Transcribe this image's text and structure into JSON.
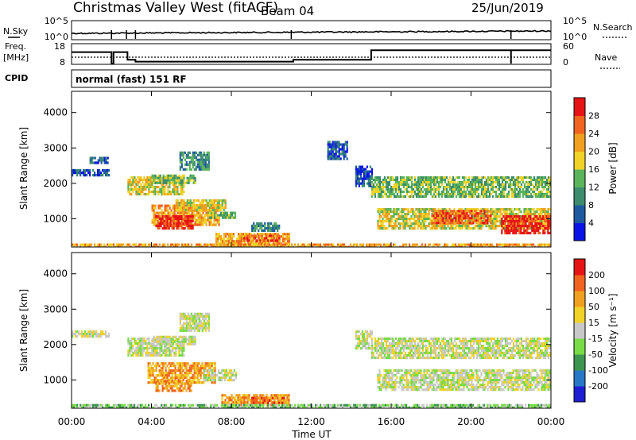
{
  "header": {
    "title": "Christmas Valley West (fitACF)",
    "beam": "Beam 04",
    "date": "25/Jun/2019"
  },
  "chart_data": [
    {
      "type": "line",
      "panel": "sky-search",
      "left_label": "N.Sky",
      "left_ticks": [
        "10^5",
        "10^0"
      ],
      "right_label": "N.Search",
      "right_ticks": [
        "10^5",
        "10^0"
      ]
    },
    {
      "type": "line",
      "panel": "freq-nave",
      "left_label_1": "Freq.",
      "left_label_2": "[MHz]",
      "left_ticks": [
        "18",
        "8"
      ],
      "right_label": "Nave",
      "right_ticks": [
        "60",
        "0"
      ],
      "ylim_freq": [
        8,
        18
      ],
      "ylim_nave": [
        0,
        60
      ],
      "freq_steps": [
        {
          "t": 0.0,
          "v": 14
        },
        {
          "t": 2.0,
          "v": 8
        },
        {
          "t": 2.1,
          "v": 14
        },
        {
          "t": 2.8,
          "v": 10
        },
        {
          "t": 3.2,
          "v": 9
        },
        {
          "t": 11.0,
          "v": 9
        },
        {
          "t": 11.1,
          "v": 10
        },
        {
          "t": 15.0,
          "v": 15
        },
        {
          "t": 24.0,
          "v": 15
        }
      ],
      "nave_level": 20
    },
    {
      "type": "table",
      "panel": "cpid",
      "label": "CPID",
      "program": "normal (fast) 151 RF"
    },
    {
      "type": "heatmap",
      "panel": "power",
      "ylabel": "Slant Range [km]",
      "yticks": [
        "4000",
        "3000",
        "2000",
        "1000"
      ],
      "ylim": [
        200,
        4600
      ],
      "xlim": [
        0,
        24
      ],
      "colorbar": {
        "label": "Power [dB]",
        "ticks": [
          "28",
          "24",
          "20",
          "16",
          "12",
          "8",
          "4"
        ],
        "colors": [
          "#0a14e6",
          "#1e5aa0",
          "#3c8c6e",
          "#5ab45a",
          "#f0d228",
          "#f0a01e",
          "#f0641e",
          "#e61414"
        ]
      },
      "patches": [
        {
          "t": [
            0.0,
            1.9
          ],
          "r": [
            2200,
            2400
          ],
          "level": 1
        },
        {
          "t": [
            0.9,
            1.8
          ],
          "r": [
            2550,
            2750
          ],
          "level": 1
        },
        {
          "t": [
            2.8,
            5.6
          ],
          "r": [
            1700,
            2200
          ],
          "level": 4
        },
        {
          "t": [
            4.0,
            6.2
          ],
          "r": [
            2000,
            2250
          ],
          "level": 3
        },
        {
          "t": [
            5.4,
            6.9
          ],
          "r": [
            2400,
            2900
          ],
          "level": 2
        },
        {
          "t": [
            4.0,
            7.4
          ],
          "r": [
            850,
            1400
          ],
          "level": 5
        },
        {
          "t": [
            4.2,
            6.1
          ],
          "r": [
            700,
            1100
          ],
          "level": 7
        },
        {
          "t": [
            5.2,
            7.7
          ],
          "r": [
            1250,
            1550
          ],
          "level": 4
        },
        {
          "t": [
            6.8,
            8.2
          ],
          "r": [
            1000,
            1200
          ],
          "level": 3
        },
        {
          "t": [
            7.2,
            10.9
          ],
          "r": [
            250,
            600
          ],
          "level": 5
        },
        {
          "t": [
            8.6,
            10.4
          ],
          "r": [
            350,
            550
          ],
          "level": 6
        },
        {
          "t": [
            9.0,
            10.4
          ],
          "r": [
            650,
            900
          ],
          "level": 2
        },
        {
          "t": [
            12.8,
            13.8
          ],
          "r": [
            2700,
            3200
          ],
          "level": 1
        },
        {
          "t": [
            14.2,
            15.0
          ],
          "r": [
            1900,
            2500
          ],
          "level": 1
        },
        {
          "t": [
            15.0,
            24.0
          ],
          "r": [
            1600,
            2200
          ],
          "level": 3
        },
        {
          "t": [
            15.3,
            24.0
          ],
          "r": [
            700,
            1300
          ],
          "level": 4
        },
        {
          "t": [
            18.0,
            21.0
          ],
          "r": [
            900,
            1250
          ],
          "level": 6
        },
        {
          "t": [
            21.5,
            24.0
          ],
          "r": [
            600,
            1100
          ],
          "level": 7
        },
        {
          "t": [
            0.0,
            24.0
          ],
          "r": [
            200,
            300
          ],
          "level": 5
        }
      ]
    },
    {
      "type": "heatmap",
      "panel": "velocity",
      "ylabel": "Slant Range [km]",
      "yticks": [
        "4000",
        "3000",
        "2000",
        "1000"
      ],
      "ylim": [
        200,
        4600
      ],
      "xlim": [
        0,
        24
      ],
      "xlabel": "Time UT",
      "xticks": [
        "00:00",
        "04:00",
        "08:00",
        "12:00",
        "16:00",
        "20:00",
        "00:00"
      ],
      "colorbar": {
        "label": "Velocity [m s⁻¹]",
        "ticks": [
          "200",
          "100",
          "50",
          "15",
          "-15",
          "-50",
          "-100",
          "-200"
        ],
        "colors": [
          "#1e1ed2",
          "#2878c8",
          "#3c9650",
          "#78dc46",
          "#c8c8c8",
          "#f0d228",
          "#f0a01e",
          "#f0641e",
          "#e61414"
        ]
      },
      "patches": [
        {
          "t": [
            0.0,
            1.9
          ],
          "r": [
            2200,
            2400
          ],
          "level": 4
        },
        {
          "t": [
            2.8,
            5.6
          ],
          "r": [
            1700,
            2200
          ],
          "level": 4
        },
        {
          "t": [
            4.0,
            6.2
          ],
          "r": [
            2000,
            2250
          ],
          "level": 4
        },
        {
          "t": [
            5.4,
            6.9
          ],
          "r": [
            2400,
            2900
          ],
          "level": 4
        },
        {
          "t": [
            3.8,
            7.2
          ],
          "r": [
            900,
            1500
          ],
          "level": 6
        },
        {
          "t": [
            4.2,
            6.0
          ],
          "r": [
            700,
            1000
          ],
          "level": 6
        },
        {
          "t": [
            6.6,
            8.2
          ],
          "r": [
            1000,
            1300
          ],
          "level": 4
        },
        {
          "t": [
            7.5,
            10.9
          ],
          "r": [
            300,
            600
          ],
          "level": 6
        },
        {
          "t": [
            9.0,
            10.6
          ],
          "r": [
            350,
            520
          ],
          "level": 7
        },
        {
          "t": [
            14.2,
            15.0
          ],
          "r": [
            1900,
            2400
          ],
          "level": 4
        },
        {
          "t": [
            15.0,
            24.0
          ],
          "r": [
            1600,
            2200
          ],
          "level": 4
        },
        {
          "t": [
            15.3,
            24.0
          ],
          "r": [
            700,
            1300
          ],
          "level": 4
        },
        {
          "t": [
            0.0,
            24.0
          ],
          "r": [
            200,
            320
          ],
          "level": 3
        }
      ]
    }
  ]
}
